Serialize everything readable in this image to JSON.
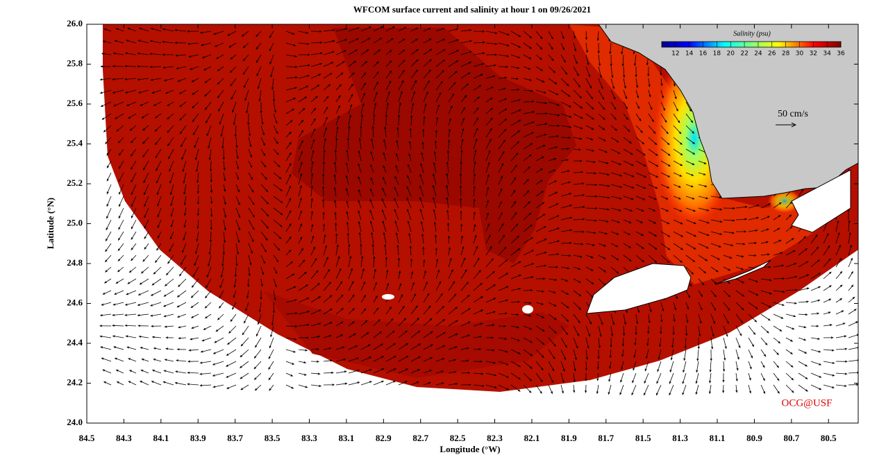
{
  "map": {
    "title": "WFCOM surface current and salinity at hour 1 on 09/26/2021",
    "xlabel": "Longitude (°W)",
    "ylabel": "Latitude (°N)",
    "xlim": [
      84.5,
      80.34
    ],
    "ylim": [
      24.0,
      26.0
    ],
    "xticks": [
      84.5,
      84.3,
      84.1,
      83.9,
      83.7,
      83.5,
      83.3,
      83.1,
      82.9,
      82.7,
      82.5,
      82.3,
      82.1,
      81.9,
      81.7,
      81.5,
      81.3,
      81.1,
      80.9,
      80.7,
      80.5
    ],
    "yticks": [
      {
        "value": 24.0,
        "label": "24.0"
      },
      24.2,
      24.4,
      24.6,
      24.8,
      {
        "value": 25.0,
        "label": "25.0"
      },
      25.2,
      25.4,
      25.6,
      25.8,
      {
        "value": 26.0,
        "label": "26.0"
      }
    ],
    "colorbar": {
      "label": "Salinity (psu)",
      "lim": [
        10,
        36
      ],
      "ticks": [
        12,
        14,
        16,
        18,
        20,
        22,
        24,
        26,
        28,
        30,
        32,
        34,
        36
      ]
    },
    "scale_label": "50 cm/s",
    "credit": "OCG@USF"
  }
}
